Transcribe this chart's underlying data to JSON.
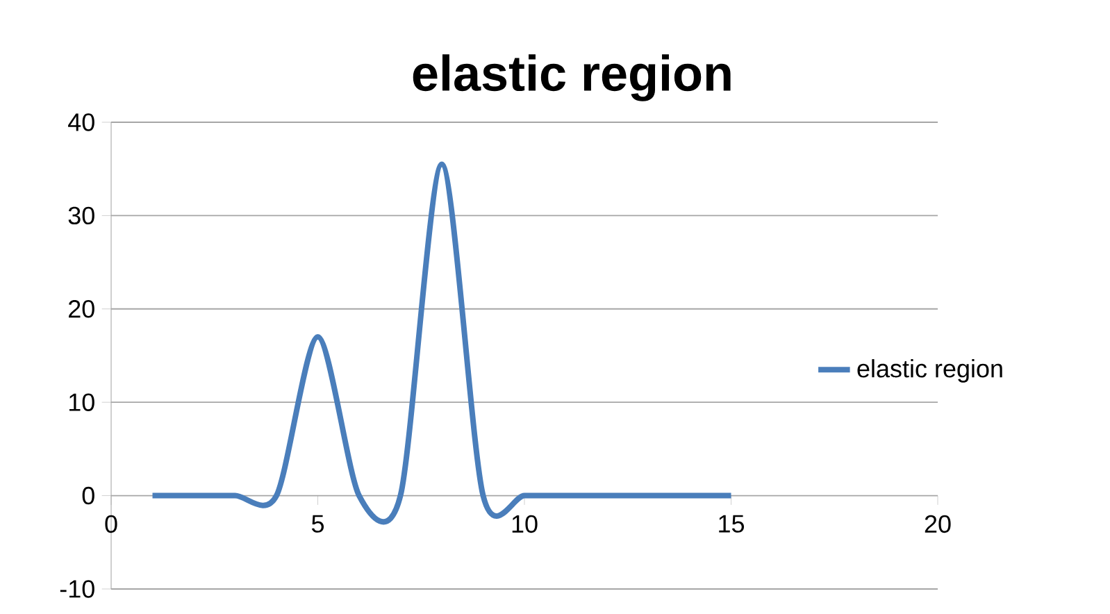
{
  "chart_data": {
    "type": "line",
    "title": "elastic region",
    "x": [
      1,
      2,
      3,
      4,
      5,
      6,
      7,
      8,
      9,
      10,
      11,
      12,
      13,
      14,
      15
    ],
    "series": [
      {
        "name": "elastic region",
        "color": "#4a7ebb",
        "values": [
          0,
          0,
          0,
          0,
          17,
          0,
          0,
          35.5,
          0,
          0,
          0,
          0,
          0,
          0,
          0
        ]
      }
    ],
    "xlim": [
      0,
      20
    ],
    "xticks": [
      0,
      5,
      10,
      15,
      20
    ],
    "ylim": [
      -10,
      40
    ],
    "yticks": [
      -10,
      0,
      10,
      20,
      30,
      40
    ],
    "grid": "y",
    "legend": "right",
    "marker": "none",
    "line_style": "solid"
  }
}
